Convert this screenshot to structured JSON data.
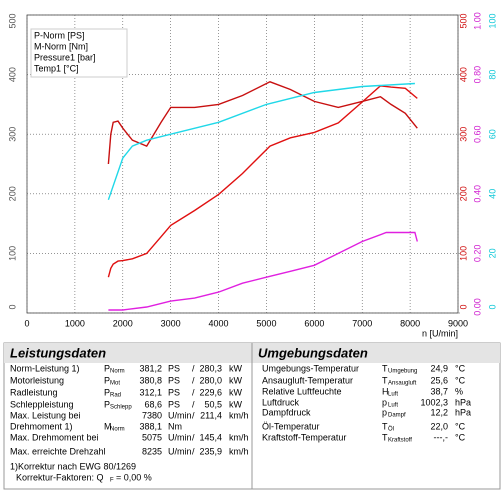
{
  "chart_data": {
    "type": "line",
    "xlabel": "n [U/min]",
    "xlim": [
      0,
      9000
    ],
    "xticks": [
      0,
      1000,
      2000,
      3000,
      4000,
      5000,
      6000,
      7000,
      8000,
      9000
    ],
    "ylim": [
      0,
      500
    ],
    "yticks": [
      0,
      100,
      200,
      300,
      400,
      500
    ],
    "y2lim": [
      0,
      500
    ],
    "y2ticks": [
      0,
      100,
      200,
      300,
      400,
      500
    ],
    "y3lim": [
      0,
      1
    ],
    "y3ticks": [
      {
        "value": 0,
        "label": "0.00"
      },
      {
        "value": 0.2,
        "label": "0.20"
      },
      {
        "value": 0.4,
        "label": "0.40"
      },
      {
        "value": 0.6,
        "label": "0.60"
      },
      {
        "value": 0.8,
        "label": "0.80"
      },
      {
        "value": 1,
        "label": "1.00"
      }
    ],
    "y4lim": [
      0,
      100
    ],
    "y4ticks": [
      0,
      20,
      40,
      60,
      80,
      100
    ],
    "grid": true,
    "series": [
      {
        "name": "P-Norm [PS]",
        "color": "#e01010",
        "axis": "y2",
        "x": [
          1700,
          1750,
          1800,
          1900,
          2000,
          2200,
          2500,
          2800,
          3000,
          3500,
          4000,
          4500,
          5075,
          5500,
          6000,
          6500,
          7000,
          7380,
          7600,
          7900,
          8150
        ],
        "values": [
          60,
          75,
          82,
          87,
          88,
          91,
          100,
          128,
          147,
          172,
          199,
          234,
          280,
          294,
          303,
          319,
          354,
          381,
          379,
          377,
          360
        ]
      },
      {
        "name": "M-Norm [Nm]",
        "color": "#c81010",
        "axis": "y2",
        "x": [
          1700,
          1750,
          1800,
          1900,
          2000,
          2200,
          2500,
          2800,
          3000,
          3500,
          4000,
          4500,
          5075,
          5500,
          6000,
          6500,
          7000,
          7380,
          7600,
          7900,
          8150
        ],
        "values": [
          250,
          300,
          320,
          322,
          310,
          290,
          280,
          320,
          345,
          345,
          350,
          365,
          388,
          375,
          355,
          345,
          355,
          363,
          350,
          335,
          310
        ]
      },
      {
        "name": "Pressure1 [bar]",
        "color": "#e020e0",
        "axis": "y3",
        "x": [
          1700,
          2000,
          2500,
          3000,
          3500,
          4000,
          4500,
          5000,
          5500,
          6000,
          6500,
          7000,
          7500,
          8100,
          8150
        ],
        "values": [
          0.01,
          0.01,
          0.02,
          0.04,
          0.05,
          0.07,
          0.1,
          0.12,
          0.14,
          0.16,
          0.2,
          0.24,
          0.27,
          0.27,
          0.24
        ]
      },
      {
        "name": "Temp1 [°C]",
        "color": "#20d8e8",
        "axis": "y4",
        "x": [
          1700,
          2000,
          2200,
          2500,
          3000,
          4000,
          5000,
          5500,
          6000,
          7000,
          8100
        ],
        "values": [
          38,
          52,
          56,
          58,
          60,
          64,
          70,
          72,
          74,
          76,
          77
        ]
      }
    ]
  },
  "leistungsdaten": {
    "title": "Leistungsdaten",
    "rows": [
      {
        "label": "Norm-Leistung 1)",
        "sym": "P",
        "sub": "Norm",
        "value": "381,2",
        "unit": "PS",
        "sep": "/",
        "value2": "280,3",
        "unit2": "kW",
        "color": "#e00000"
      },
      {
        "label": "Motorleistung",
        "sym": "P",
        "sub": "Mot",
        "value": "380,8",
        "unit": "PS",
        "sep": "/",
        "value2": "280,0",
        "unit2": "kW",
        "color": "#e00000"
      },
      {
        "label": "Radleistung",
        "sym": "P",
        "sub": "Rad",
        "value": "312,1",
        "unit": "PS",
        "sep": "/",
        "value2": "229,6",
        "unit2": "kW",
        "color": "#0000c8"
      },
      {
        "label": "Schleppleistung",
        "sym": "P",
        "sub": "Schlepp",
        "value": "68,6",
        "unit": "PS",
        "sep": "/",
        "value2": "50,5",
        "unit2": "kW",
        "color": "#008000"
      },
      {
        "label": "Max. Leistung bei",
        "value": "7380",
        "unit": "U/min",
        "sep": "/",
        "value2": "211,4",
        "unit2": "km/h",
        "color": "#000000"
      },
      {
        "label": "Drehmoment 1)",
        "sym": "M",
        "sub": "Norm",
        "value": "388,1",
        "unit": "Nm",
        "color": "#e00000"
      },
      {
        "label": "Max. Drehmoment bei",
        "value": "5075",
        "unit": "U/min",
        "sep": "/",
        "value2": "145,4",
        "unit2": "km/h",
        "color": "#000000"
      },
      {
        "label": "Max. erreichte Drehzahl",
        "value": "8235",
        "unit": "U/min",
        "sep": "/",
        "value2": "235,9",
        "unit2": "km/h",
        "color": "#000000"
      }
    ],
    "footnote": "1)Korrektur nach EWG 80/1269",
    "factor": {
      "label": "Korrektur-Faktoren: Q",
      "sub": "F",
      "value": "=   0,00 %"
    }
  },
  "umgebungsdaten": {
    "title": "Umgebungsdaten",
    "rows": [
      {
        "label": "Umgebungs-Temperatur",
        "sym": "T",
        "sub": "Umgebung",
        "value": "24,9",
        "unit": "°C"
      },
      {
        "label": "Ansaugluft-Temperatur",
        "sym": "T",
        "sub": "Ansaugluft",
        "value": "25,6",
        "unit": "°C"
      },
      {
        "label": "Relative Luftfeuchte",
        "sym": "H",
        "sub": "Luft",
        "value": "38,7",
        "unit": "%"
      },
      {
        "label": "Luftdruck",
        "sym": "p",
        "sub": "Luft",
        "value": "1002,3",
        "unit": "hPa"
      },
      {
        "label": "Dampfdruck",
        "sym": "p",
        "sub": "Dampf",
        "value": "12,2",
        "unit": "hPa"
      },
      {
        "label": "Öl-Temperatur",
        "sym": "T",
        "sub": "Öl",
        "value": "22,0",
        "unit": "°C"
      },
      {
        "label": "Kraftstoff-Temperatur",
        "sym": "T",
        "sub": "Kraftstoff",
        "value": "---,-",
        "unit": "°C"
      }
    ]
  }
}
